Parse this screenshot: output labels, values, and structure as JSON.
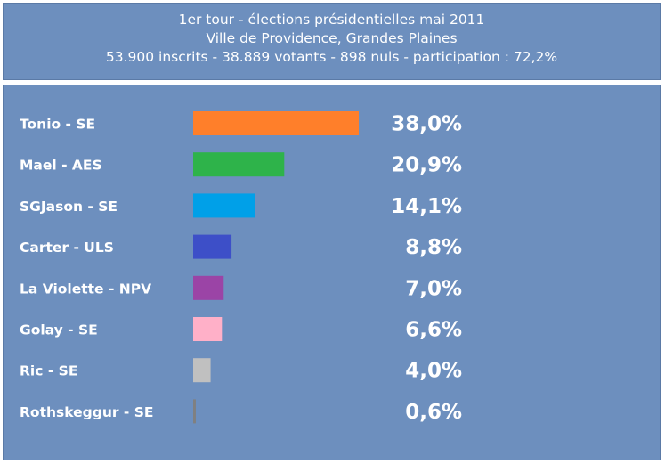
{
  "header": {
    "line1": "1er tour - élections présidentielles mai 2011",
    "line2": "Ville de Providence, Grandes Plaines",
    "line3": "53.900 inscrits - 38.889 votants - 898 nuls -  participation : 72,2%"
  },
  "chart_data": {
    "type": "bar",
    "orientation": "horizontal",
    "title": "1er tour - élections présidentielles mai 2011",
    "subtitle": "Ville de Providence, Grandes Plaines",
    "categories": [
      "Tonio - SE",
      "Mael - AES",
      "SGJason - SE",
      "Carter - ULS",
      "La Violette - NPV",
      "Golay - SE",
      "Ric - SE",
      "Rothskeggur - SE"
    ],
    "values": [
      38.0,
      20.9,
      14.1,
      8.8,
      7.0,
      6.6,
      4.0,
      0.6
    ],
    "value_labels": [
      "38,0%",
      "20,9%",
      "14,1%",
      "8,8%",
      "7,0%",
      "6,6%",
      "4,0%",
      "0,6%"
    ],
    "colors": [
      "#ff7f2a",
      "#2eb34a",
      "#00a0e8",
      "#3d4fc8",
      "#9b44a6",
      "#ffb0c8",
      "#c0c0c0",
      "#808080"
    ],
    "grid": false,
    "legend": "none"
  }
}
